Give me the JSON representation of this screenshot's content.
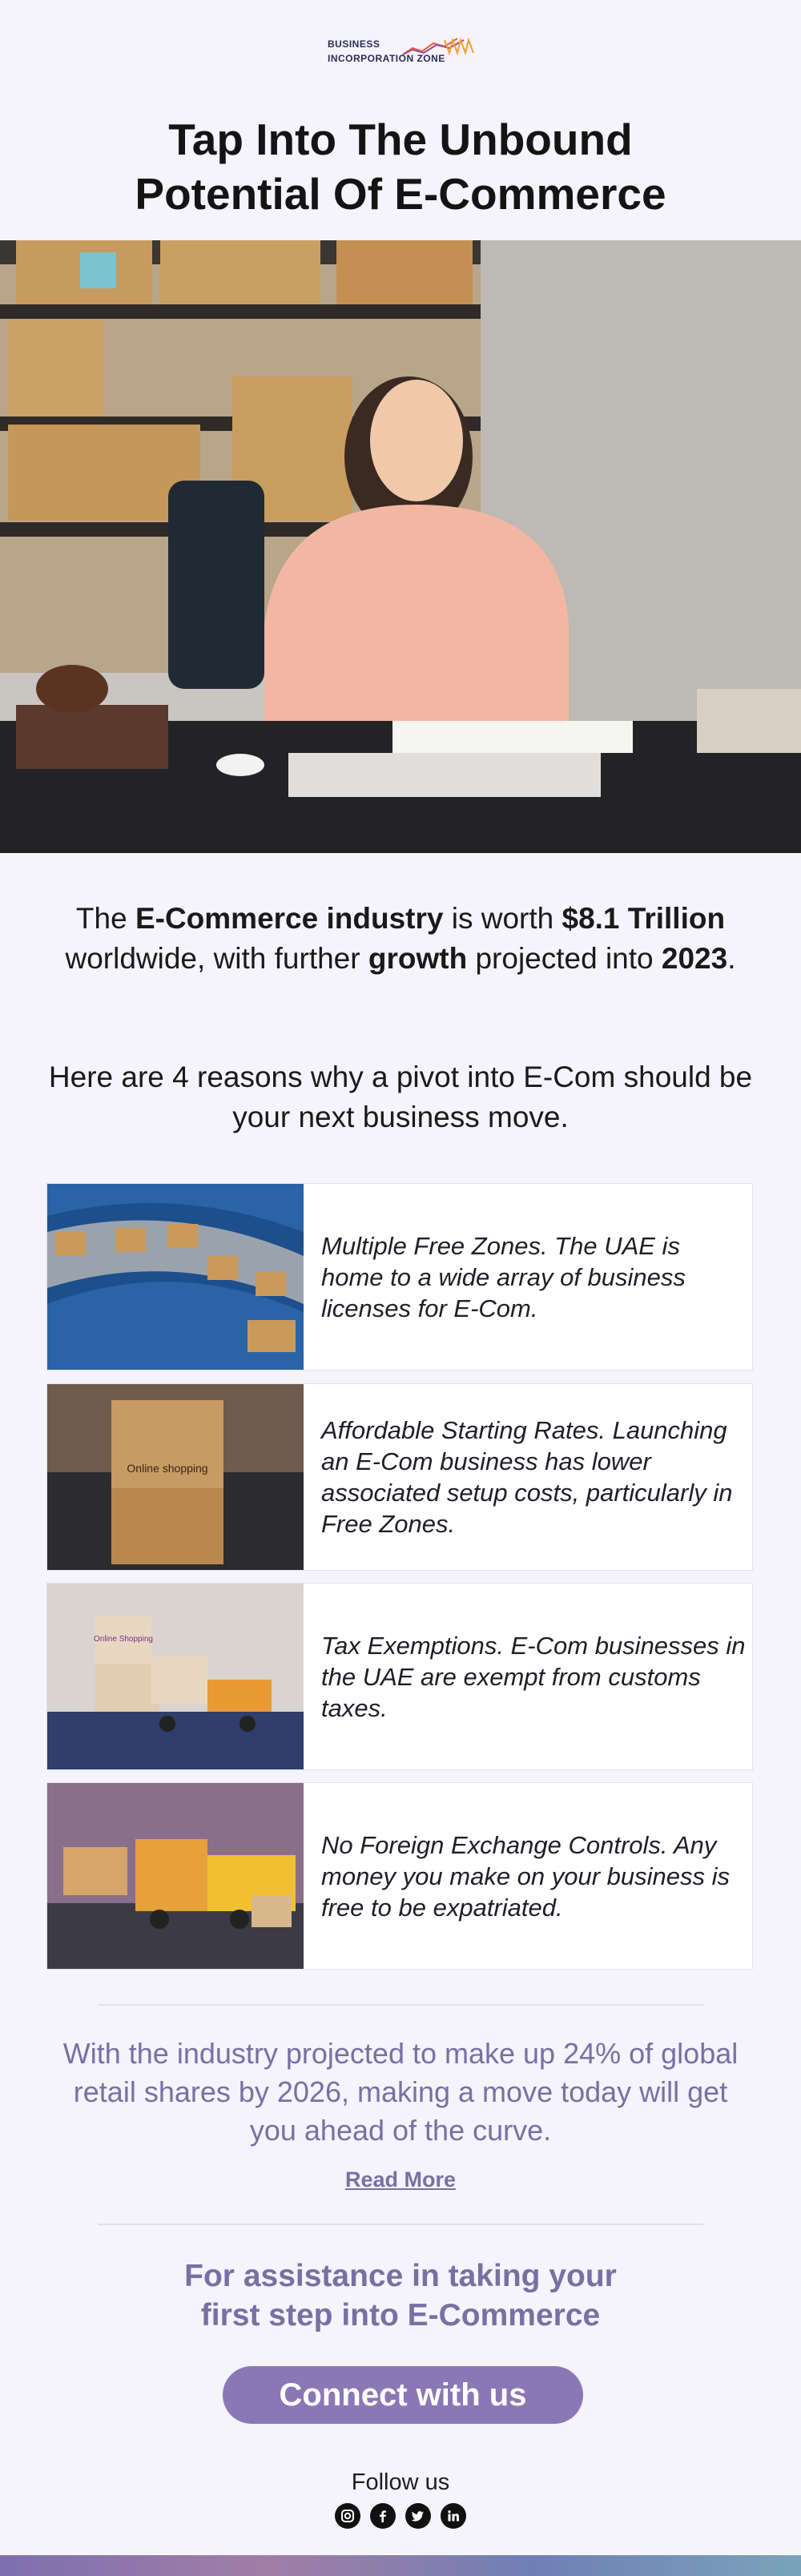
{
  "logo": {
    "line1": "BUSINESS",
    "line2": "INCORPORATION ZONE"
  },
  "hero": {
    "title_line1": "Tap Into The Unbound",
    "title_line2": "Potential Of E-Commerce"
  },
  "intro": {
    "p1": "The ",
    "b1": "E-Commerce industry",
    "p2": " is worth ",
    "b2": "$8.1 Trillion",
    "p3": " worldwide, with further ",
    "b3": "growth",
    "p4": "  projected into ",
    "b4": "2023",
    "p5": "."
  },
  "reasons_intro": "Here are 4 reasons why a pivot into E-Com should be your next business move.",
  "cards": [
    {
      "text": "Multiple Free Zones. The UAE is home to a wide array of business licenses for E-Com."
    },
    {
      "text": "Affordable Starting Rates. Launching an E-Com business has lower associated setup costs, particularly in Free Zones.",
      "image_label": "Online shopping"
    },
    {
      "text": "Tax Exemptions. E-Com businesses in the UAE are exempt from customs taxes.",
      "image_label": "Online Shopping"
    },
    {
      "text": "No Foreign Exchange Controls. Any money you make on your business is free to be expatriated."
    }
  ],
  "closing": "With the industry projected to make up 24% of global retail shares by 2026, making a move today will get you ahead of the curve.",
  "read_more": "Read More",
  "assist": {
    "line1": "For assistance in taking your",
    "line2": "first step into E-Commerce"
  },
  "cta": "Connect with us",
  "follow": "Follow us",
  "social": [
    "instagram-icon",
    "facebook-icon",
    "twitter-icon",
    "linkedin-icon"
  ],
  "colors": {
    "accent": "#8a78b6",
    "accent_text": "#7a6fa3",
    "background": "#f5f3fb"
  }
}
